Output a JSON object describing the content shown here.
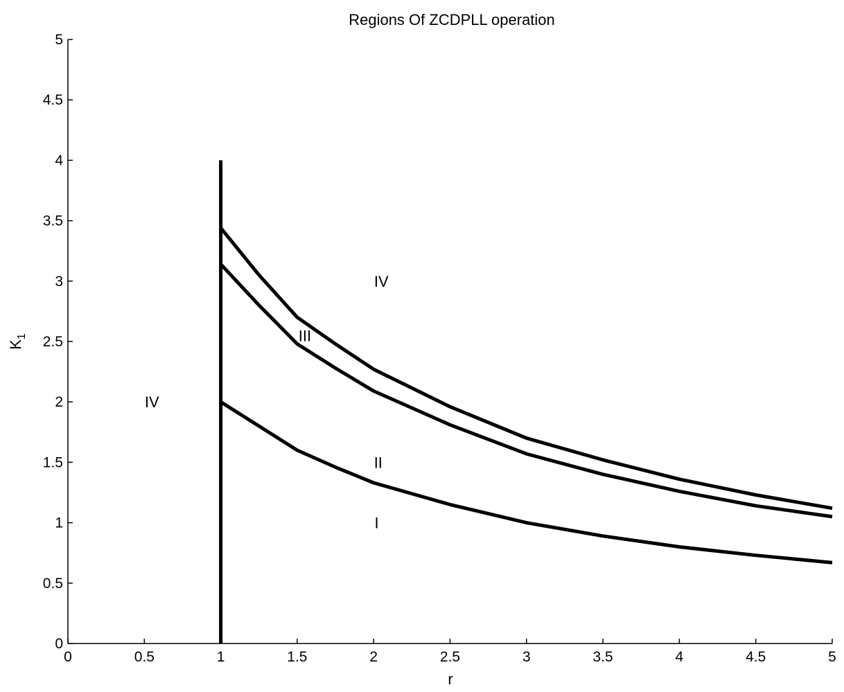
{
  "chart_data": {
    "type": "line",
    "title": "Regions Of ZCDPLL operation",
    "xlabel": "r",
    "ylabel": "K",
    "ylabel_subscript": "1",
    "xlim": [
      0,
      5
    ],
    "ylim": [
      0,
      5
    ],
    "x_ticks": [
      0,
      0.5,
      1,
      1.5,
      2,
      2.5,
      3,
      3.5,
      4,
      4.5,
      5
    ],
    "x_tick_labels": [
      "0",
      "0.5",
      "1",
      "1.5",
      "2",
      "2.5",
      "3",
      "3.5",
      "4",
      "4.5",
      "5"
    ],
    "y_ticks": [
      0,
      0.5,
      1,
      1.5,
      2,
      2.5,
      3,
      3.5,
      4,
      4.5,
      5
    ],
    "y_tick_labels": [
      "0",
      "0.5",
      "1",
      "1.5",
      "2",
      "2.5",
      "3",
      "3.5",
      "4",
      "4.5",
      "5"
    ],
    "grid": false,
    "line_color": "#000000",
    "series": [
      {
        "x": [
          1,
          1.25,
          1.5,
          1.75,
          2,
          2.5,
          3,
          3.5,
          4,
          4.5,
          5
        ],
        "y": [
          2.0,
          1.8,
          1.6,
          1.46,
          1.33,
          1.15,
          1.0,
          0.89,
          0.8,
          0.73,
          0.67
        ]
      },
      {
        "x": [
          1,
          1.25,
          1.5,
          1.75,
          2,
          2.5,
          3,
          3.5,
          4,
          4.5,
          5
        ],
        "y": [
          3.14,
          2.8,
          2.48,
          2.28,
          2.09,
          1.81,
          1.57,
          1.4,
          1.26,
          1.14,
          1.05
        ]
      },
      {
        "x": [
          1,
          1.25,
          1.5,
          1.75,
          2,
          2.5,
          3,
          3.5,
          4,
          4.5,
          5
        ],
        "y": [
          3.44,
          3.05,
          2.7,
          2.48,
          2.27,
          1.96,
          1.7,
          1.52,
          1.36,
          1.23,
          1.12
        ]
      },
      {
        "x": [
          1,
          1
        ],
        "y": [
          0,
          4
        ]
      }
    ],
    "annotations": [
      {
        "text": "IV",
        "x": 0.55,
        "y": 2.0
      },
      {
        "text": "IV",
        "x": 2.05,
        "y": 3.0
      },
      {
        "text": "III",
        "x": 1.55,
        "y": 2.55
      },
      {
        "text": "II",
        "x": 2.03,
        "y": 1.5
      },
      {
        "text": "I",
        "x": 2.02,
        "y": 1.0
      }
    ]
  }
}
